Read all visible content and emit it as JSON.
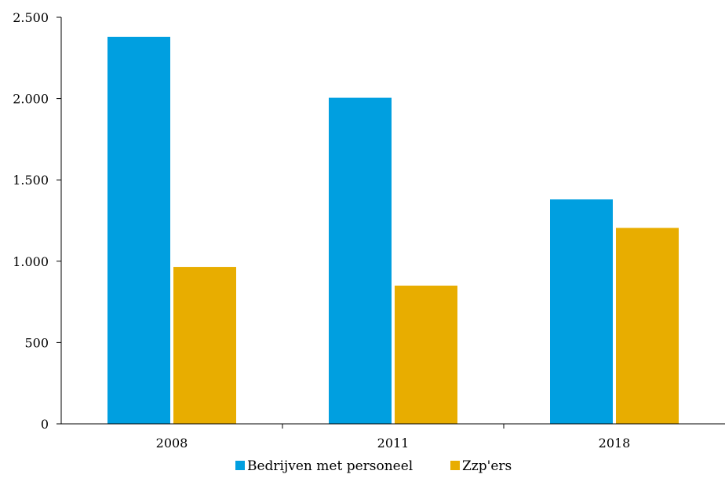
{
  "chart_data": {
    "type": "bar",
    "categories": [
      "2008",
      "2011",
      "2018"
    ],
    "series": [
      {
        "name": "Bedrijven met personeel",
        "color": "#009fe0",
        "values": [
          2380,
          2005,
          1380
        ]
      },
      {
        "name": "Zzp'ers",
        "color": "#e8ad00",
        "values": [
          965,
          850,
          1205
        ]
      }
    ],
    "ylim": [
      0,
      2500
    ],
    "yticks": [
      0,
      500,
      1000,
      1500,
      2000,
      2500
    ],
    "ytick_labels": [
      "0",
      "500",
      "1.000",
      "1.500",
      "2.000",
      "2.500"
    ],
    "xlabel": "",
    "ylabel": "",
    "title": "",
    "grid": false,
    "legend_position": "bottom"
  }
}
